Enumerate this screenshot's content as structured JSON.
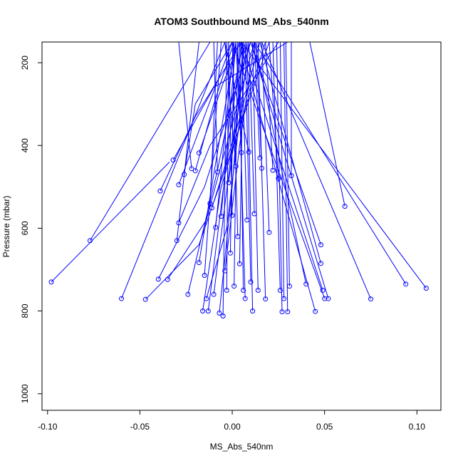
{
  "chart_data": {
    "type": "line",
    "title": "ATOM3 Southbound MS_Abs_540nm",
    "xlabel": "MS_Abs_540nm",
    "ylabel": "Pressure (mbar)",
    "xlim": [
      -0.103,
      0.113
    ],
    "ylim": [
      1040,
      150
    ],
    "y_axis_inverted": true,
    "x_ticks": [
      -0.1,
      -0.05,
      0.0,
      0.05,
      0.1
    ],
    "x_tick_labels": [
      "-0.10",
      "-0.05",
      "0.00",
      "0.05",
      "0.10"
    ],
    "y_ticks": [
      200,
      400,
      600,
      800,
      1000
    ],
    "y_tick_labels": [
      "200",
      "400",
      "600",
      "800",
      "1000"
    ],
    "grid": false,
    "series_color": "#0000ff",
    "series": [
      {
        "x": [
          -0.098,
          -0.034
        ],
        "y": [
          730,
          440
        ]
      },
      {
        "x": [
          -0.077,
          -0.012
        ],
        "y": [
          630,
          150
        ]
      },
      {
        "x": [
          -0.06,
          -0.004
        ],
        "y": [
          770,
          150
        ]
      },
      {
        "x": [
          -0.047,
          -0.018,
          0.02
        ],
        "y": [
          772,
          640,
          150
        ]
      },
      {
        "x": [
          -0.04,
          -0.015,
          0.01
        ],
        "y": [
          723,
          500,
          150
        ]
      },
      {
        "x": [
          -0.039,
          -0.02,
          0.005
        ],
        "y": [
          510,
          330,
          150
        ]
      },
      {
        "x": [
          -0.035,
          -0.014,
          0.012
        ],
        "y": [
          724,
          580,
          150
        ]
      },
      {
        "x": [
          -0.032,
          -0.01,
          0.03
        ],
        "y": [
          435,
          260,
          150
        ]
      },
      {
        "x": [
          -0.03,
          -0.018
        ],
        "y": [
          630,
          150
        ]
      },
      {
        "x": [
          -0.029,
          -0.012,
          0.025
        ],
        "y": [
          587,
          400,
          150
        ]
      },
      {
        "x": [
          -0.029,
          0.0
        ],
        "y": [
          495,
          150
        ]
      },
      {
        "x": [
          -0.026,
          -0.02,
          0.0
        ],
        "y": [
          470,
          300,
          150
        ]
      },
      {
        "x": [
          -0.024,
          -0.008,
          0.006
        ],
        "y": [
          760,
          460,
          150
        ]
      },
      {
        "x": [
          -0.022,
          -0.029
        ],
        "y": [
          456,
          150
        ]
      },
      {
        "x": [
          -0.02,
          -0.01,
          0.001
        ],
        "y": [
          461,
          300,
          150
        ]
      },
      {
        "x": [
          -0.018,
          0.002
        ],
        "y": [
          683,
          150
        ]
      },
      {
        "x": [
          -0.018,
          -0.005,
          0.004
        ],
        "y": [
          418,
          250,
          150
        ]
      },
      {
        "x": [
          -0.016,
          -0.006,
          0.018
        ],
        "y": [
          800,
          500,
          150
        ]
      },
      {
        "x": [
          -0.015,
          -0.006
        ],
        "y": [
          714,
          150
        ]
      },
      {
        "x": [
          -0.014,
          -0.003,
          0.009
        ],
        "y": [
          770,
          600,
          150
        ]
      },
      {
        "x": [
          -0.013,
          0.005
        ],
        "y": [
          800,
          150
        ]
      },
      {
        "x": [
          -0.012,
          -0.008
        ],
        "y": [
          540,
          150
        ]
      },
      {
        "x": [
          -0.011,
          0.003,
          0.015
        ],
        "y": [
          551,
          350,
          150
        ]
      },
      {
        "x": [
          -0.01,
          0.007
        ],
        "y": [
          760,
          150
        ]
      },
      {
        "x": [
          -0.009,
          0.001
        ],
        "y": [
          598,
          150
        ]
      },
      {
        "x": [
          -0.008,
          -0.01
        ],
        "y": [
          464,
          150
        ]
      },
      {
        "x": [
          -0.007,
          0.0,
          0.006
        ],
        "y": [
          805,
          500,
          150
        ]
      },
      {
        "x": [
          -0.006,
          0.002
        ],
        "y": [
          571,
          150
        ]
      },
      {
        "x": [
          -0.005,
          -0.003
        ],
        "y": [
          812,
          150
        ]
      },
      {
        "x": [
          -0.004,
          0.004,
          0.012
        ],
        "y": [
          703,
          400,
          150
        ]
      },
      {
        "x": [
          -0.003,
          -0.002
        ],
        "y": [
          750,
          150
        ]
      },
      {
        "x": [
          -0.002,
          0.008
        ],
        "y": [
          490,
          150
        ]
      },
      {
        "x": [
          -0.001,
          0.001
        ],
        "y": [
          660,
          150
        ]
      },
      {
        "x": [
          0.0,
          -0.002
        ],
        "y": [
          569,
          150
        ]
      },
      {
        "x": [
          0.001,
          0.003
        ],
        "y": [
          740,
          150
        ]
      },
      {
        "x": [
          0.002,
          -0.004
        ],
        "y": [
          450,
          150
        ]
      },
      {
        "x": [
          0.003,
          0.0
        ],
        "y": [
          620,
          150
        ]
      },
      {
        "x": [
          0.004,
          0.006
        ],
        "y": [
          686,
          150
        ]
      },
      {
        "x": [
          0.005,
          0.002
        ],
        "y": [
          417,
          150
        ]
      },
      {
        "x": [
          0.006,
          0.004
        ],
        "y": [
          750,
          150
        ]
      },
      {
        "x": [
          0.007,
          0.003
        ],
        "y": [
          770,
          150
        ]
      },
      {
        "x": [
          0.008,
          0.005
        ],
        "y": [
          580,
          150
        ]
      },
      {
        "x": [
          0.009,
          -0.004
        ],
        "y": [
          416,
          150
        ]
      },
      {
        "x": [
          0.01,
          0.007
        ],
        "y": [
          730,
          150
        ]
      },
      {
        "x": [
          0.011,
          0.008
        ],
        "y": [
          800,
          150
        ]
      },
      {
        "x": [
          0.012,
          0.009
        ],
        "y": [
          565,
          150
        ]
      },
      {
        "x": [
          0.014,
          0.011
        ],
        "y": [
          750,
          150
        ]
      },
      {
        "x": [
          0.015,
          0.012
        ],
        "y": [
          430,
          150
        ]
      },
      {
        "x": [
          0.016,
          0.013
        ],
        "y": [
          455,
          150
        ]
      },
      {
        "x": [
          0.018,
          0.014
        ],
        "y": [
          771,
          150
        ]
      },
      {
        "x": [
          0.02,
          0.016
        ],
        "y": [
          610,
          150
        ]
      },
      {
        "x": [
          0.022,
          0.018
        ],
        "y": [
          460,
          150
        ]
      },
      {
        "x": [
          0.025,
          0.02
        ],
        "y": [
          480,
          150
        ]
      },
      {
        "x": [
          0.026,
          0.022
        ],
        "y": [
          750,
          150
        ]
      },
      {
        "x": [
          0.027,
          0.024
        ],
        "y": [
          802,
          150
        ]
      },
      {
        "x": [
          0.028,
          0.026
        ],
        "y": [
          770,
          150
        ]
      },
      {
        "x": [
          0.03,
          0.028
        ],
        "y": [
          802,
          150
        ]
      },
      {
        "x": [
          0.031,
          0.029
        ],
        "y": [
          740,
          150
        ]
      },
      {
        "x": [
          0.032,
          0.032
        ],
        "y": [
          473,
          150
        ]
      },
      {
        "x": [
          0.04,
          0.012
        ],
        "y": [
          735,
          150
        ]
      },
      {
        "x": [
          0.045,
          0.004
        ],
        "y": [
          801,
          150
        ]
      },
      {
        "x": [
          0.048,
          0.01
        ],
        "y": [
          640,
          150
        ]
      },
      {
        "x": [
          0.048,
          0.015
        ],
        "y": [
          685,
          150
        ]
      },
      {
        "x": [
          0.049,
          0.005
        ],
        "y": [
          750,
          150
        ]
      },
      {
        "x": [
          0.05,
          0.0
        ],
        "y": [
          770,
          150
        ]
      },
      {
        "x": [
          0.052,
          0.01
        ],
        "y": [
          770,
          150
        ]
      },
      {
        "x": [
          0.061,
          0.042
        ],
        "y": [
          547,
          150
        ]
      },
      {
        "x": [
          0.075,
          0.016
        ],
        "y": [
          771,
          150
        ]
      },
      {
        "x": [
          0.094,
          0.012
        ],
        "y": [
          735,
          150
        ]
      },
      {
        "x": [
          0.105,
          0.005
        ],
        "y": [
          745,
          150
        ]
      }
    ]
  }
}
